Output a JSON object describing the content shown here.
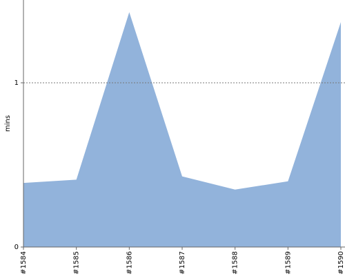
{
  "chart_data": {
    "type": "area",
    "ylabel": "mins",
    "categories": [
      "#1584",
      "#1585",
      "#1586",
      "#1587",
      "#1588",
      "#1589",
      "#1590"
    ],
    "values": [
      0.39,
      0.41,
      1.43,
      0.43,
      0.35,
      0.4,
      1.37
    ],
    "color": "#92b3db",
    "ylim": [
      0,
      1.5
    ],
    "yticks": [
      0,
      1
    ],
    "grid": true
  }
}
